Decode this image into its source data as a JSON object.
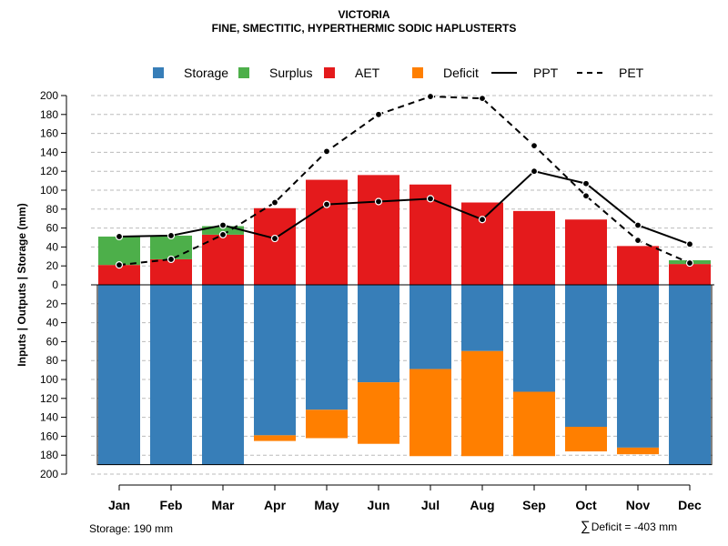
{
  "header": {
    "title": "VICTORIA",
    "subtitle": "FINE, SMECTITIC, HYPERTHERMIC SODIC HAPLUSTERTS"
  },
  "legend": {
    "storage": "Storage",
    "surplus": "Surplus",
    "aet": "AET",
    "deficit": "Deficit",
    "ppt": "PPT",
    "pet": "PET"
  },
  "colors": {
    "storage": "#377EB8",
    "surplus": "#4DAF4A",
    "aet": "#E41A1C",
    "deficit": "#FF7F00",
    "line": "#000000",
    "grid": "#bbbbbb"
  },
  "footer": {
    "storage_text": "Storage: 190 mm",
    "deficit_symbol": "∑",
    "deficit_text": "Deficit = -403 mm"
  },
  "chart_data": {
    "type": "bar",
    "title": "VICTORIA",
    "subtitle": "FINE, SMECTITIC, HYPERTHERMIC SODIC HAPLUSTERTS",
    "ylabel": "Inputs | Outputs | Storage     (mm)",
    "ylim": [
      -200,
      200
    ],
    "yticks": [
      200,
      180,
      160,
      140,
      120,
      100,
      80,
      60,
      40,
      20,
      0,
      20,
      40,
      60,
      80,
      100,
      120,
      140,
      160,
      180,
      200
    ],
    "ytick_values": [
      200,
      180,
      160,
      140,
      120,
      100,
      80,
      60,
      40,
      20,
      0,
      -20,
      -40,
      -60,
      -80,
      -100,
      -120,
      -140,
      -160,
      -180,
      -200
    ],
    "grid": true,
    "categories": [
      "Jan",
      "Feb",
      "Mar",
      "Apr",
      "May",
      "Jun",
      "Jul",
      "Aug",
      "Sep",
      "Oct",
      "Nov",
      "Dec"
    ],
    "series": [
      {
        "name": "AET",
        "values": [
          21,
          27,
          53,
          81,
          111,
          116,
          106,
          87,
          78,
          69,
          41,
          22
        ]
      },
      {
        "name": "Surplus",
        "values": [
          30,
          25,
          9,
          0,
          0,
          0,
          0,
          0,
          0,
          0,
          0,
          4
        ]
      },
      {
        "name": "Storage",
        "values": [
          190,
          190,
          190,
          159,
          132,
          103,
          89,
          70,
          113,
          150,
          172,
          190
        ]
      },
      {
        "name": "Deficit",
        "values": [
          0,
          0,
          0,
          6,
          30,
          65,
          92,
          111,
          68,
          26,
          7,
          0
        ]
      },
      {
        "name": "PPT",
        "values": [
          51,
          52,
          63,
          49,
          85,
          88,
          91,
          69,
          120,
          107,
          63,
          43
        ]
      },
      {
        "name": "PET",
        "values": [
          21,
          27,
          53,
          87,
          141,
          180,
          199,
          197,
          147,
          94,
          47,
          23
        ]
      }
    ]
  }
}
